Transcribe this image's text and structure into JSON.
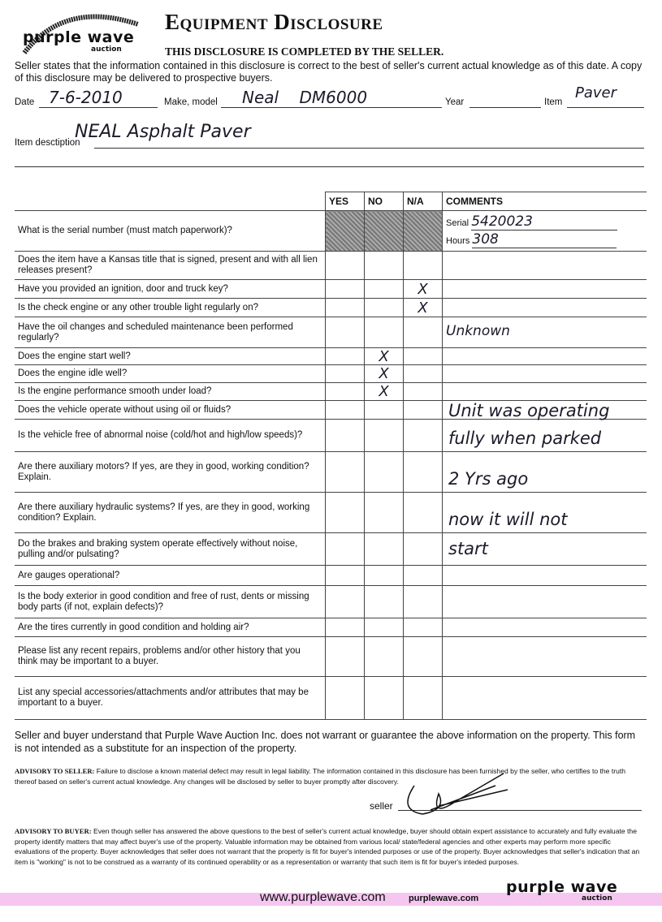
{
  "logo": {
    "main": "purple wave",
    "sub": "auction"
  },
  "header": {
    "title": "Equipment Disclosure",
    "subtitle": "THIS DISCLOSURE IS COMPLETED BY THE SELLER.",
    "intro": "Seller states that the information contained in this disclosure is correct to the best of seller's current actual knowledge as of this date. A copy of this disclosure may be delivered to prospective buyers."
  },
  "fields": {
    "date_label": "Date",
    "date_value": "7-6-2010",
    "make_label": "Make, model",
    "make_value": "Neal    DM6000",
    "year_label": "Year",
    "year_value": "",
    "item_label": "Item",
    "item_value": "Paver",
    "desc_label": "Item desctiption",
    "desc_value": "NEAL Asphalt Paver"
  },
  "table": {
    "headers": [
      "",
      "YES",
      "NO",
      "N/A",
      "COMMENTS"
    ],
    "serial_label": "Serial",
    "serial_value": "5420023",
    "hours_label": "Hours",
    "hours_value": "308",
    "rows": [
      {
        "q": "What is the serial number (must match paperwork)?",
        "mark": "shade"
      },
      {
        "q": "Does the item have a Kansas title that is signed, present and with all lien releases present?",
        "mark": ""
      },
      {
        "q": "Have you provided an ignition, door and truck key?",
        "mark": "na"
      },
      {
        "q": "Is the check engine or any other trouble light regularly on?",
        "mark": "na"
      },
      {
        "q": "Have the oil changes and scheduled maintenance been performed regularly?",
        "mark": "",
        "comment": "Unknown"
      },
      {
        "q": "Does the engine start well?",
        "mark": "no"
      },
      {
        "q": "Does the engine idle well?",
        "mark": "no"
      },
      {
        "q": "Is the engine performance smooth under load?",
        "mark": "no"
      },
      {
        "q": "Does the vehicle operate without using oil or fluids?",
        "mark": ""
      },
      {
        "q": "Is the vehicle free of abnormal noise (cold/hot and high/low speeds)?",
        "mark": ""
      },
      {
        "q": "Are there auxiliary motors? If yes, are they in good, working condition? Explain.",
        "mark": ""
      },
      {
        "q": "Are there auxiliary hydraulic systems? If yes, are they in good, working condition? Explain.",
        "mark": ""
      },
      {
        "q": "Do the brakes and braking system operate effectively without noise, pulling and/or pulsating?",
        "mark": ""
      },
      {
        "q": "Are gauges operational?",
        "mark": ""
      },
      {
        "q": "Is the body exterior in good condition and free of rust, dents or missing body parts (if not, explain defects)?",
        "mark": ""
      },
      {
        "q": "Are the tires currently in good condition and holding air?",
        "mark": ""
      },
      {
        "q": "Please list any recent repairs, problems and/or other history that you think may be important to a buyer.",
        "mark": ""
      },
      {
        "q": "List any special accessories/attachments and/or attributes that may be important to a buyer.",
        "mark": ""
      }
    ],
    "mark_glyph": "X",
    "handwritten_comment": [
      "Unit was operating",
      "fully when parked",
      "2 Yrs ago",
      "now it will not",
      "start"
    ]
  },
  "footer": {
    "understand": "Seller and buyer understand that Purple Wave Auction Inc. does not warrant or guarantee the above information on the property. This form is not intended as a substitute for an inspection of the property.",
    "seller_adv_label": "ADVISORY TO SELLER:",
    "seller_adv": "Failure to disclose a known material defect may result in legal liability. The information contained in this disclosure has been furnished by the seller, who certifies to the truth thereof based on seller's current actual knowledge. Any changes will be disclosed by seller to buyer promptly after discovery.",
    "seller_label": "seller",
    "buyer_adv_label": "ADVISORY TO BUYER:",
    "buyer_adv": "Even though seller has answered the above questions to the best of seller's current actual knowledge, buyer should obtain expert assistance to accurately and fully evaluate the property identify matters that may affect buyer's use of the property. Valuable information may be obtained from various local/ state/federal agencies and other experts may perform more specific evaluations of the property. Buyer acknowledges that seller does not warrant that the property is fit for buyer's intended purposes or use of the property. Buyer acknowledges that seller's indication that an item is \"working\" is not to be construed as a warranty of its continued operability or as a representation or warranty that such item is fit for buyer's inteded purposes.",
    "url_main": "www.purplewave.com",
    "url_small": "purplewave.com",
    "band_color": "#f5c6f0"
  }
}
